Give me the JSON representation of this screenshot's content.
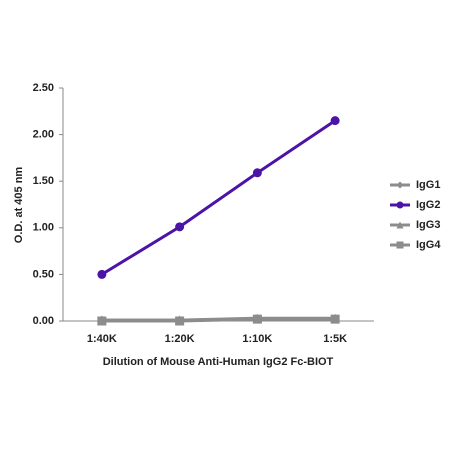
{
  "chart_data": {
    "type": "line",
    "x_label": "Dilution of Mouse Anti-Human IgG2 Fc-BIOT",
    "y_label": "O.D. at 405 nm",
    "categories": [
      "1:40K",
      "1:20K",
      "1:10K",
      "1:5K"
    ],
    "series": [
      {
        "name": "IgG1",
        "color": "#8c8c8c",
        "marker": "diamond",
        "values": [
          0.01,
          0.01,
          0.02,
          0.02
        ]
      },
      {
        "name": "IgG2",
        "color": "#4b13a6",
        "marker": "circle",
        "values": [
          0.5,
          1.01,
          1.59,
          2.15
        ]
      },
      {
        "name": "IgG3",
        "color": "#8c8c8c",
        "marker": "triangle",
        "values": [
          0.01,
          0.01,
          0.03,
          0.03
        ]
      },
      {
        "name": "IgG4",
        "color": "#8c8c8c",
        "marker": "square",
        "values": [
          0.0,
          0.0,
          0.02,
          0.02
        ]
      }
    ],
    "ylim": [
      0,
      2.5
    ],
    "yticks": [
      {
        "value": 0,
        "label": "0.00"
      },
      {
        "value": 0.5,
        "label": "0.50"
      },
      {
        "value": 1,
        "label": "1.00"
      },
      {
        "value": 1.5,
        "label": "1.50"
      },
      {
        "value": 2,
        "label": "2.00"
      },
      {
        "value": 2.5,
        "label": "2.50"
      }
    ],
    "legend": "right"
  }
}
